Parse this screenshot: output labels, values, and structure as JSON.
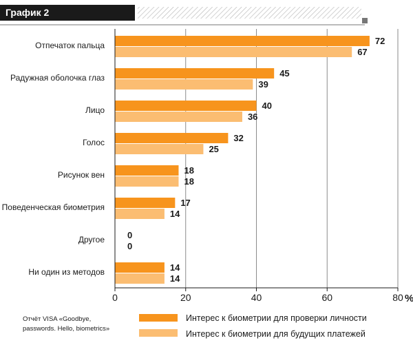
{
  "chart_data": {
    "type": "bar",
    "orientation": "horizontal",
    "title": "График 2",
    "categories": [
      "Отпечаток пальца",
      "Радужная оболочка глаз",
      "Лицо",
      "Голос",
      "Рисунок вен",
      "Поведенческая биометрия",
      "Другое",
      "Ни один из методов"
    ],
    "series": [
      {
        "name": "Интерес к биометрии для проверки личности",
        "color": "#f7941d",
        "values": [
          72,
          45,
          40,
          32,
          18,
          17,
          0,
          14
        ]
      },
      {
        "name": "Интерес к биометрии для будущих платежей",
        "color": "#fbbd72",
        "values": [
          67,
          39,
          36,
          25,
          18,
          14,
          0,
          14
        ]
      }
    ],
    "xlim": [
      0,
      80
    ],
    "xticks": [
      "0",
      "20",
      "40",
      "60",
      "80"
    ],
    "unit": "%",
    "grid": true,
    "legend": "bottom-right",
    "source": [
      "Отчёт VISA «Goodbye,",
      "passwords. Hello, biometrics»"
    ]
  }
}
